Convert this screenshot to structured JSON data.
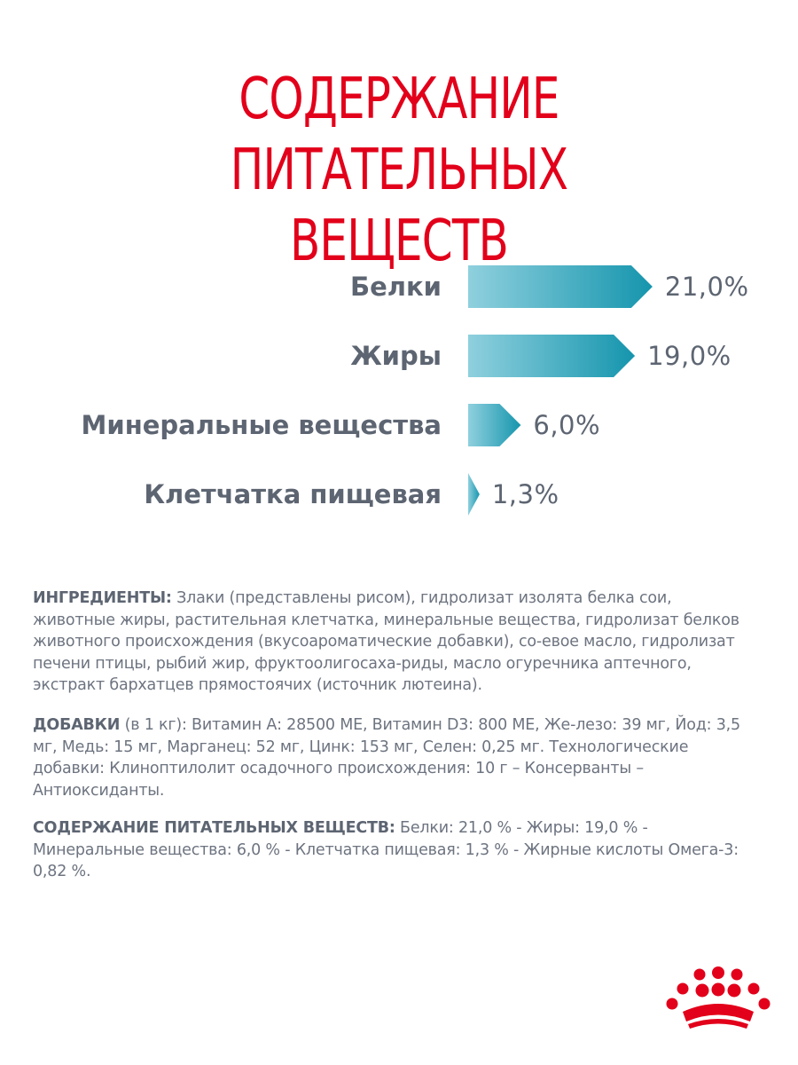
{
  "title": {
    "line1": "СОДЕРЖАНИЕ ПИТАТЕЛЬНЫХ",
    "line2": "ВЕЩЕСТВ"
  },
  "chart_data": {
    "type": "bar",
    "orientation": "horizontal",
    "categories": [
      "Белки",
      "Жиры",
      "Минеральные вещества",
      "Клетчатка пищевая"
    ],
    "values": [
      21.0,
      19.0,
      6.0,
      1.3
    ],
    "value_labels": [
      "21,0%",
      "19,0%",
      "6,0%",
      "1,3%"
    ],
    "unit": "%",
    "colors": {
      "bar_start": "#8fd0de",
      "bar_end": "#1595ad"
    }
  },
  "ingredients": {
    "label": "ИНГРЕДИЕНТЫ:",
    "text": " Злаки (представлены рисом), гидролизат изолята белка сои, животные жиры, растительная клетчатка, минеральные вещества, гидролизат белков животного происхождения (вкусоароматические добавки), со-евое масло, гидролизат печени птицы, рыбий жир, фруктоолигосаха-риды, масло огуречника аптечного, экстракт бархатцев прямостоячих (источник лютеина)."
  },
  "additives": {
    "label": "ДОБАВКИ",
    "text": " (в 1 кг): Витамин А: 28500 МЕ, Витамин D3: 800 МЕ, Же-лезо: 39 мг, Йод: 3,5 мг, Медь: 15 мг, Марганец: 52 мг, Цинк: 153  мг, Селен: 0,25 мг. Технологические добавки: Клиноптилолит осадочного происхождения: 10 г – Консерванты – Антиоксиданты."
  },
  "nutrients": {
    "label": "СОДЕРЖАНИЕ ПИТАТЕЛЬНЫХ ВЕЩЕСТВ:",
    "text": " Белки: 21,0 % - Жиры: 19,0 % - Минеральные вещества: 6,0 %  - Клетчатка пищевая: 1,3 % - Жирные кислоты Омега-3: 0,82 %."
  },
  "logo": {
    "icon": "royal-canin-crown-logo",
    "color": "#e2001a"
  }
}
